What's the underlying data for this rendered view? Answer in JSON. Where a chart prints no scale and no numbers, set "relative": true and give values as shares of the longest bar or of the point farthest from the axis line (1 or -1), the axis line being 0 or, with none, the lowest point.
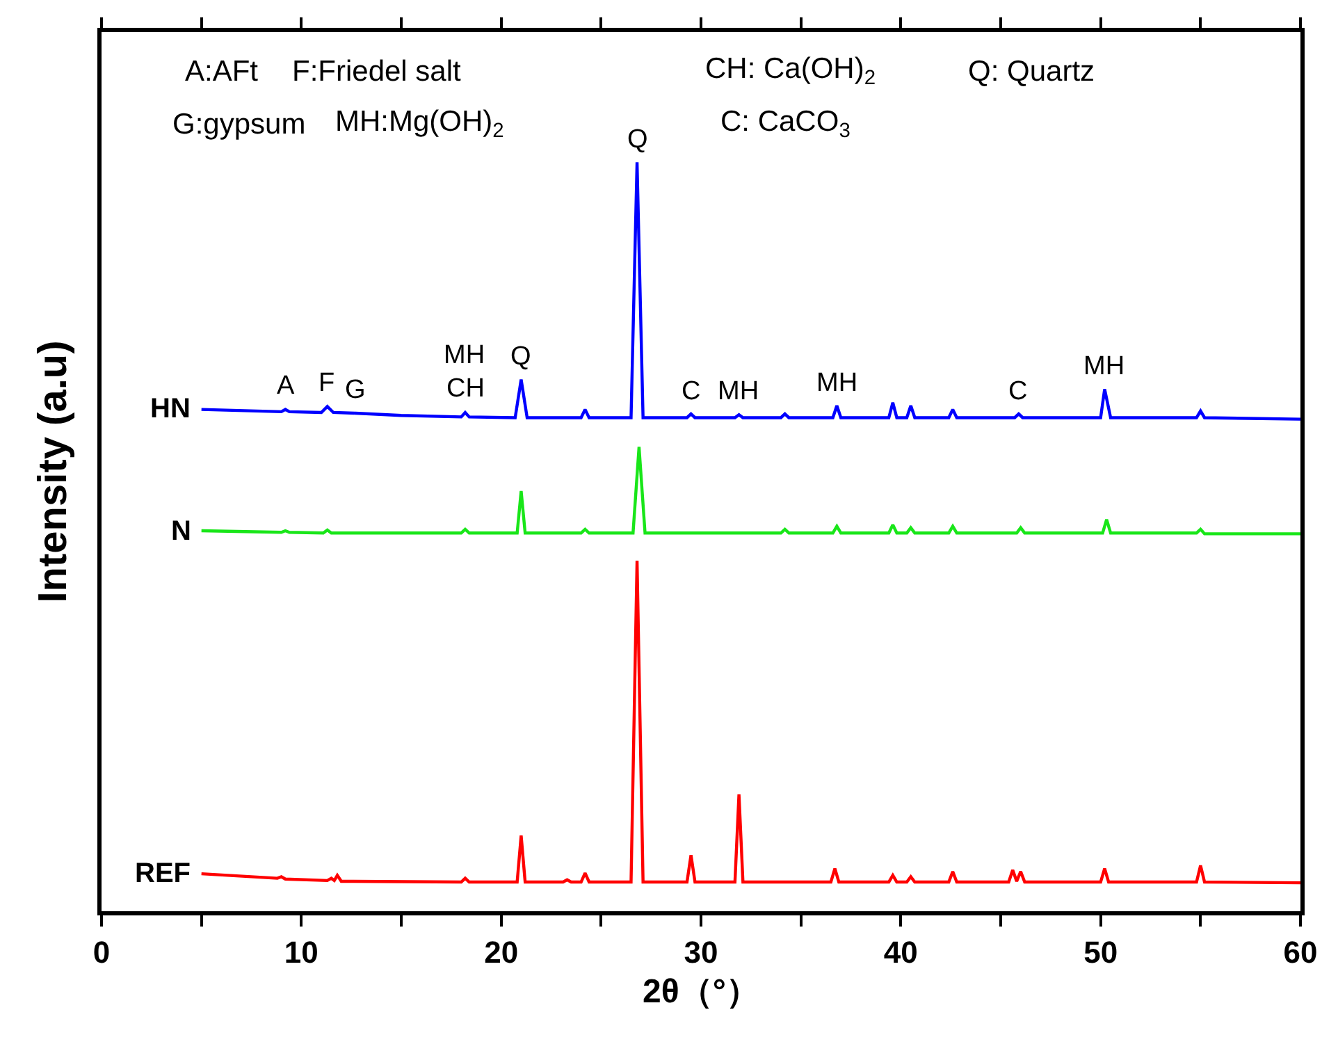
{
  "chart_data": {
    "type": "line",
    "relative": true,
    "xlabel": "2θ（°）",
    "ylabel": "Intensity (a.u)",
    "xlim": [
      0,
      60
    ],
    "xticks": [
      0,
      {
        "value": 5,
        "label": null
      },
      10,
      {
        "value": 15,
        "label": null
      },
      20,
      {
        "value": 25,
        "label": null
      },
      30,
      {
        "value": 35,
        "label": null
      },
      40,
      {
        "value": 45,
        "label": null
      },
      50,
      {
        "value": 55,
        "label": null
      },
      60
    ],
    "series": [
      {
        "name": "HN",
        "color": "#0000ff",
        "x": [
          5,
          9.0,
          9.2,
          9.4,
          11.0,
          11.3,
          11.6,
          12.7,
          15,
          18.0,
          18.2,
          18.4,
          20.7,
          21.0,
          21.3,
          24.0,
          24.2,
          24.4,
          26.5,
          26.8,
          27.1,
          29.3,
          29.5,
          29.7,
          31.7,
          31.9,
          32.1,
          34.0,
          34.2,
          34.4,
          36.6,
          36.8,
          37.0,
          39.4,
          39.6,
          39.8,
          40.3,
          40.5,
          40.7,
          42.4,
          42.6,
          42.8,
          45.7,
          45.9,
          46.1,
          50.0,
          50.2,
          50.5,
          54.8,
          55.0,
          55.2,
          60
        ],
        "values": [
          0.67,
          0.667,
          0.67,
          0.667,
          0.666,
          0.674,
          0.666,
          0.665,
          0.662,
          0.66,
          0.666,
          0.66,
          0.659,
          0.71,
          0.659,
          0.659,
          0.67,
          0.659,
          0.659,
          1.0,
          0.659,
          0.659,
          0.664,
          0.659,
          0.659,
          0.663,
          0.659,
          0.659,
          0.664,
          0.659,
          0.659,
          0.675,
          0.659,
          0.659,
          0.679,
          0.659,
          0.659,
          0.675,
          0.659,
          0.659,
          0.67,
          0.659,
          0.659,
          0.664,
          0.659,
          0.659,
          0.697,
          0.659,
          0.659,
          0.668,
          0.659,
          0.657
        ]
      },
      {
        "name": "N",
        "color": "#19e619",
        "x": [
          5,
          9.0,
          9.2,
          9.4,
          11.1,
          11.3,
          11.5,
          18.0,
          18.2,
          18.4,
          20.8,
          21.0,
          21.2,
          24.0,
          24.2,
          24.4,
          26.6,
          26.9,
          27.2,
          34.0,
          34.2,
          34.4,
          36.6,
          36.8,
          37.0,
          39.4,
          39.6,
          39.8,
          40.3,
          40.5,
          40.7,
          42.4,
          42.6,
          42.8,
          45.8,
          46.0,
          46.2,
          50.1,
          50.3,
          50.5,
          54.8,
          55.0,
          55.2,
          60
        ],
        "values": [
          0.508,
          0.506,
          0.508,
          0.506,
          0.505,
          0.509,
          0.505,
          0.505,
          0.51,
          0.505,
          0.505,
          0.561,
          0.505,
          0.505,
          0.51,
          0.505,
          0.505,
          0.62,
          0.505,
          0.505,
          0.51,
          0.505,
          0.505,
          0.514,
          0.505,
          0.505,
          0.516,
          0.505,
          0.505,
          0.512,
          0.505,
          0.505,
          0.514,
          0.505,
          0.505,
          0.512,
          0.505,
          0.505,
          0.523,
          0.505,
          0.505,
          0.51,
          0.504,
          0.504
        ]
      },
      {
        "name": "REF",
        "color": "#ff0000",
        "x": [
          5,
          8.8,
          9.0,
          9.2,
          11.3,
          11.5,
          11.65,
          11.8,
          12.0,
          18.0,
          18.2,
          18.4,
          20.8,
          21.0,
          21.2,
          23.1,
          23.3,
          23.5,
          24.0,
          24.2,
          24.4,
          26.5,
          26.8,
          27.1,
          29.3,
          29.5,
          29.7,
          31.7,
          31.9,
          32.1,
          36.5,
          36.7,
          36.9,
          39.4,
          39.6,
          39.8,
          40.3,
          40.5,
          40.7,
          42.4,
          42.6,
          42.8,
          45.4,
          45.6,
          45.8,
          46.0,
          46.2,
          50.0,
          50.2,
          50.4,
          54.8,
          55.0,
          55.2,
          60
        ],
        "values": [
          0.05,
          0.044,
          0.046,
          0.043,
          0.041,
          0.044,
          0.041,
          0.048,
          0.04,
          0.039,
          0.044,
          0.039,
          0.039,
          0.101,
          0.039,
          0.039,
          0.042,
          0.039,
          0.039,
          0.051,
          0.039,
          0.039,
          0.468,
          0.039,
          0.039,
          0.075,
          0.039,
          0.039,
          0.156,
          0.039,
          0.039,
          0.057,
          0.039,
          0.039,
          0.048,
          0.039,
          0.039,
          0.046,
          0.039,
          0.039,
          0.053,
          0.039,
          0.039,
          0.055,
          0.04,
          0.053,
          0.039,
          0.039,
          0.057,
          0.039,
          0.039,
          0.061,
          0.039,
          0.038
        ]
      }
    ],
    "annotations": [
      "A:AFt",
      "F:Friedel salt",
      "CH: Ca(OH)$_{2}$",
      "Q: Quartz",
      "G:gypsum",
      "MH:Mg(OH)$_{2}$",
      "C: CaCO$_{3}$",
      {
        "text": "A",
        "x": 9.2,
        "y": 0.67
      },
      {
        "text": "F",
        "x": 11.3,
        "y": 0.674
      },
      {
        "text": "G",
        "x": 12.7,
        "y": 0.665
      },
      {
        "text": "MH",
        "x": 18.2,
        "y": 0.666
      },
      {
        "text": "CH",
        "x": 18.2,
        "y": 0.666
      },
      {
        "text": "Q",
        "x": 21.0,
        "y": 0.71
      },
      {
        "text": "Q",
        "x": 26.8,
        "y": 1.0
      },
      {
        "text": "C",
        "x": 29.5,
        "y": 0.664
      },
      {
        "text": "MH",
        "x": 31.9,
        "y": 0.663
      },
      {
        "text": "MH",
        "x": 36.8,
        "y": 0.675
      },
      {
        "text": "C",
        "x": 45.9,
        "y": 0.664
      },
      {
        "text": "MH",
        "x": 50.2,
        "y": 0.697
      }
    ]
  }
}
